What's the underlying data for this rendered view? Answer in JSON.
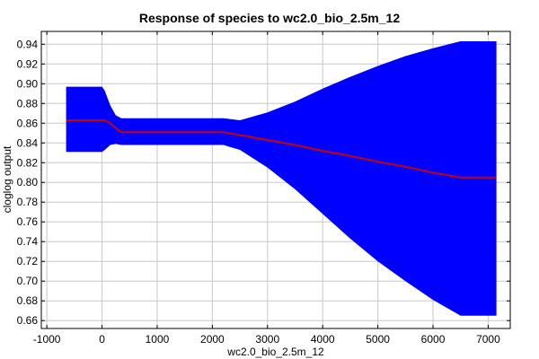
{
  "chart_data": {
    "type": "area",
    "title": "Response of species to wc2.0_bio_2.5m_12",
    "xlabel": "wc2.0_bio_2.5m_12",
    "ylabel": "cloglog output",
    "xlim": [
      -1100,
      7400
    ],
    "ylim": [
      0.652,
      0.953
    ],
    "xticks": [
      -1000,
      0,
      1000,
      2000,
      3000,
      4000,
      5000,
      6000,
      7000
    ],
    "xtick_labels": [
      "-1000",
      "0",
      "1000",
      "2000",
      "3000",
      "4000",
      "5000",
      "6000",
      "7000"
    ],
    "yticks": [
      0.66,
      0.68,
      0.7,
      0.72,
      0.74,
      0.76,
      0.78,
      0.8,
      0.82,
      0.84,
      0.86,
      0.88,
      0.9,
      0.92,
      0.94
    ],
    "ytick_labels": [
      "0.66",
      "0.68",
      "0.70",
      "0.72",
      "0.74",
      "0.76",
      "0.78",
      "0.80",
      "0.82",
      "0.84",
      "0.86",
      "0.88",
      "0.90",
      "0.92",
      "0.94"
    ],
    "grid": true,
    "colors": {
      "band": "#0000ff",
      "line": "#cc0000"
    },
    "series": [
      {
        "x": [
          -650,
          0,
          50,
          150,
          250,
          350,
          600,
          1000,
          1500,
          2000,
          2200,
          2500,
          3000,
          3500,
          4000,
          4500,
          5000,
          5500,
          6000,
          6500,
          7150
        ],
        "values": [
          0.863,
          0.863,
          0.863,
          0.86,
          0.855,
          0.851,
          0.851,
          0.851,
          0.851,
          0.851,
          0.851,
          0.848,
          0.843,
          0.838,
          0.832,
          0.827,
          0.821,
          0.816,
          0.81,
          0.805,
          0.805
        ]
      },
      {
        "x": [
          -650,
          0,
          50,
          150,
          250,
          350,
          600,
          1000,
          1500,
          2000,
          2200,
          2500,
          3000,
          3500,
          4000,
          4500,
          5000,
          5500,
          6000,
          6500,
          7150
        ],
        "upper": [
          0.897,
          0.897,
          0.893,
          0.878,
          0.868,
          0.865,
          0.865,
          0.865,
          0.865,
          0.865,
          0.865,
          0.863,
          0.871,
          0.882,
          0.895,
          0.907,
          0.918,
          0.928,
          0.936,
          0.943,
          0.943
        ],
        "lower": [
          0.831,
          0.831,
          0.833,
          0.838,
          0.839,
          0.838,
          0.838,
          0.838,
          0.838,
          0.838,
          0.838,
          0.833,
          0.815,
          0.793,
          0.768,
          0.743,
          0.72,
          0.7,
          0.681,
          0.665,
          0.665
        ]
      }
    ]
  }
}
